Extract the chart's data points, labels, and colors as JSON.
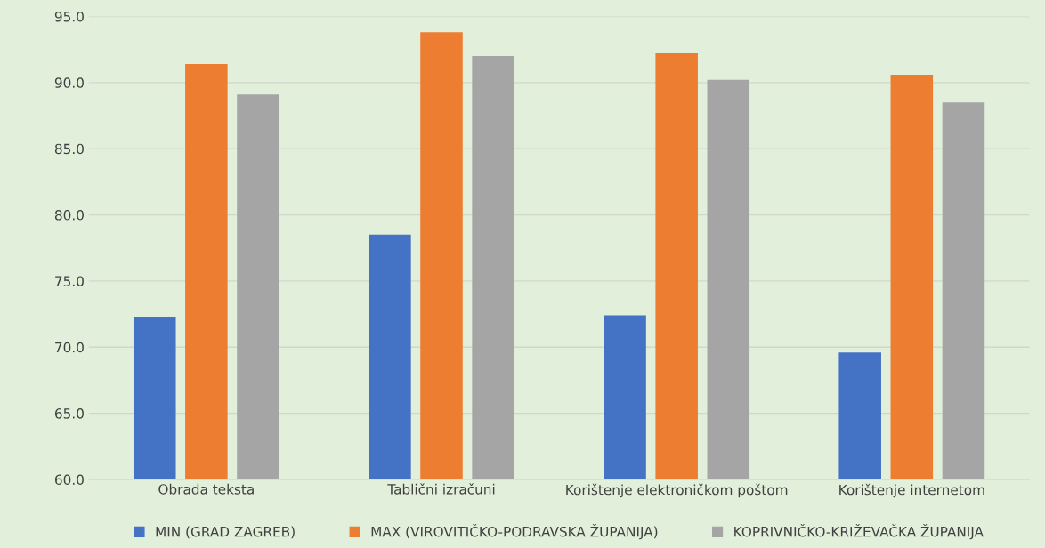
{
  "chart_data": {
    "type": "bar",
    "categories": [
      "Obrada teksta",
      "Tablični izračuni",
      "Korištenje elektroničkom poštom",
      "Korištenje internetom"
    ],
    "series": [
      {
        "name": "MIN (GRAD ZAGREB)",
        "color": "#4472c4",
        "values": [
          72.3,
          78.5,
          72.4,
          69.6
        ]
      },
      {
        "name": "MAX (VIROVITIČKO-PODRAVSKA ŽUPANIJA)",
        "color": "#ed7d31",
        "values": [
          91.4,
          93.8,
          92.2,
          90.6
        ]
      },
      {
        "name": "KOPRIVNIČKO-KRIŽEVAČKA ŽUPANIJA",
        "color": "#a5a5a5",
        "values": [
          89.1,
          92.0,
          90.2,
          88.5
        ]
      }
    ],
    "ylim": [
      60,
      95
    ],
    "yticks": [
      {
        "value": 60,
        "label": "60.0"
      },
      {
        "value": 65,
        "label": "65.0"
      },
      {
        "value": 70,
        "label": "70.0"
      },
      {
        "value": 75,
        "label": "75.0"
      },
      {
        "value": 80,
        "label": "80.0"
      },
      {
        "value": 85,
        "label": "85.0"
      },
      {
        "value": 90,
        "label": "90.0"
      },
      {
        "value": 95,
        "label": "95.0"
      }
    ],
    "grid": "y",
    "legend": "bottom"
  }
}
